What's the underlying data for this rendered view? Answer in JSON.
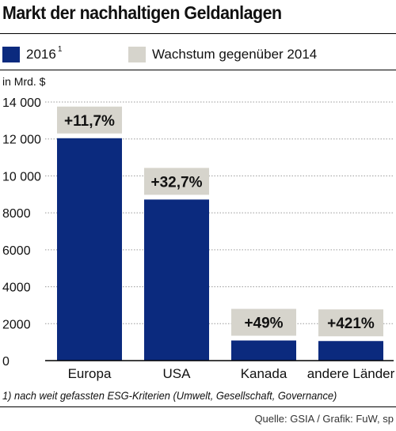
{
  "title": "Markt der nachhaltigen Geldanlagen",
  "legend": [
    {
      "label": "2016",
      "sup": "1",
      "color": "#0b2a7e"
    },
    {
      "label": "Wachstum gegenüber 2014",
      "sup": "",
      "color": "#d6d4cc"
    }
  ],
  "chart_data": {
    "type": "bar",
    "unit_label": "in Mrd. $",
    "categories": [
      "Europa",
      "USA",
      "Kanada",
      "andere Länder"
    ],
    "values": [
      12040,
      8720,
      1090,
      1060
    ],
    "growth_labels": [
      "+11,7%",
      "+32,7%",
      "+49%",
      "+421%"
    ],
    "ylim": [
      0,
      14000
    ],
    "yticks": [
      0,
      2000,
      4000,
      6000,
      8000,
      10000,
      12000,
      14000
    ],
    "ytick_labels": [
      "0",
      "2000",
      "4000",
      "6000",
      "8000",
      "10 000",
      "12 000",
      "14 000"
    ],
    "grid": true,
    "bar_color": "#0b2a7e",
    "label_box_color": "#d6d4cc"
  },
  "footnote": "1) nach weit gefassten ESG-Kriterien (Umwelt, Gesellschaft, Governance)",
  "source": "Quelle: GSIA / Grafik: FuW, sp"
}
